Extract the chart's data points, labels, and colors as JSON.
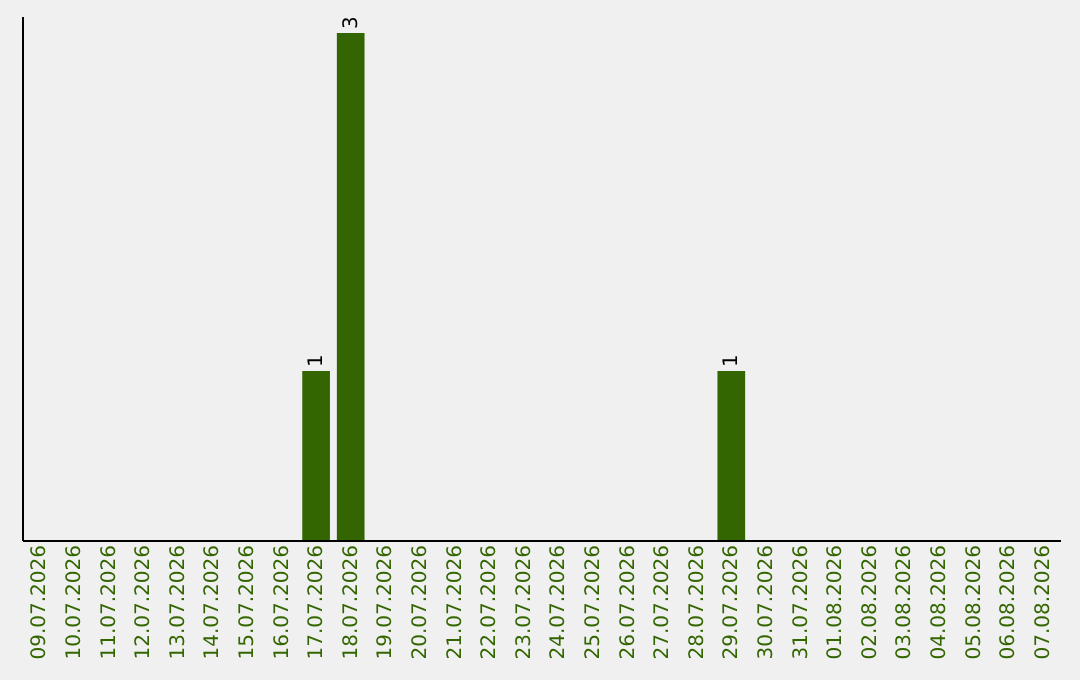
{
  "chart_data": {
    "type": "bar",
    "categories": [
      "09.07.2026",
      "10.07.2026",
      "11.07.2026",
      "12.07.2026",
      "13.07.2026",
      "14.07.2026",
      "15.07.2026",
      "16.07.2026",
      "17.07.2026",
      "18.07.2026",
      "19.07.2026",
      "20.07.2026",
      "21.07.2026",
      "22.07.2026",
      "23.07.2026",
      "24.07.2026",
      "25.07.2026",
      "26.07.2026",
      "27.07.2026",
      "28.07.2026",
      "29.07.2026",
      "30.07.2026",
      "31.07.2026",
      "01.08.2026",
      "02.08.2026",
      "03.08.2026",
      "04.08.2026",
      "05.08.2026",
      "06.08.2026",
      "07.08.2026"
    ],
    "values": [
      0,
      0,
      0,
      0,
      0,
      0,
      0,
      0,
      1,
      3,
      0,
      0,
      0,
      0,
      0,
      0,
      0,
      0,
      0,
      0,
      1,
      0,
      0,
      0,
      0,
      0,
      0,
      0,
      0,
      0
    ],
    "value_labels": [
      null,
      null,
      null,
      null,
      null,
      null,
      null,
      null,
      "1",
      "3",
      null,
      null,
      null,
      null,
      null,
      null,
      null,
      null,
      null,
      null,
      "1",
      null,
      null,
      null,
      null,
      null,
      null,
      null,
      null,
      null
    ],
    "color": "#336600",
    "ylim": [
      0,
      3.1
    ],
    "tick_labels": "x"
  }
}
